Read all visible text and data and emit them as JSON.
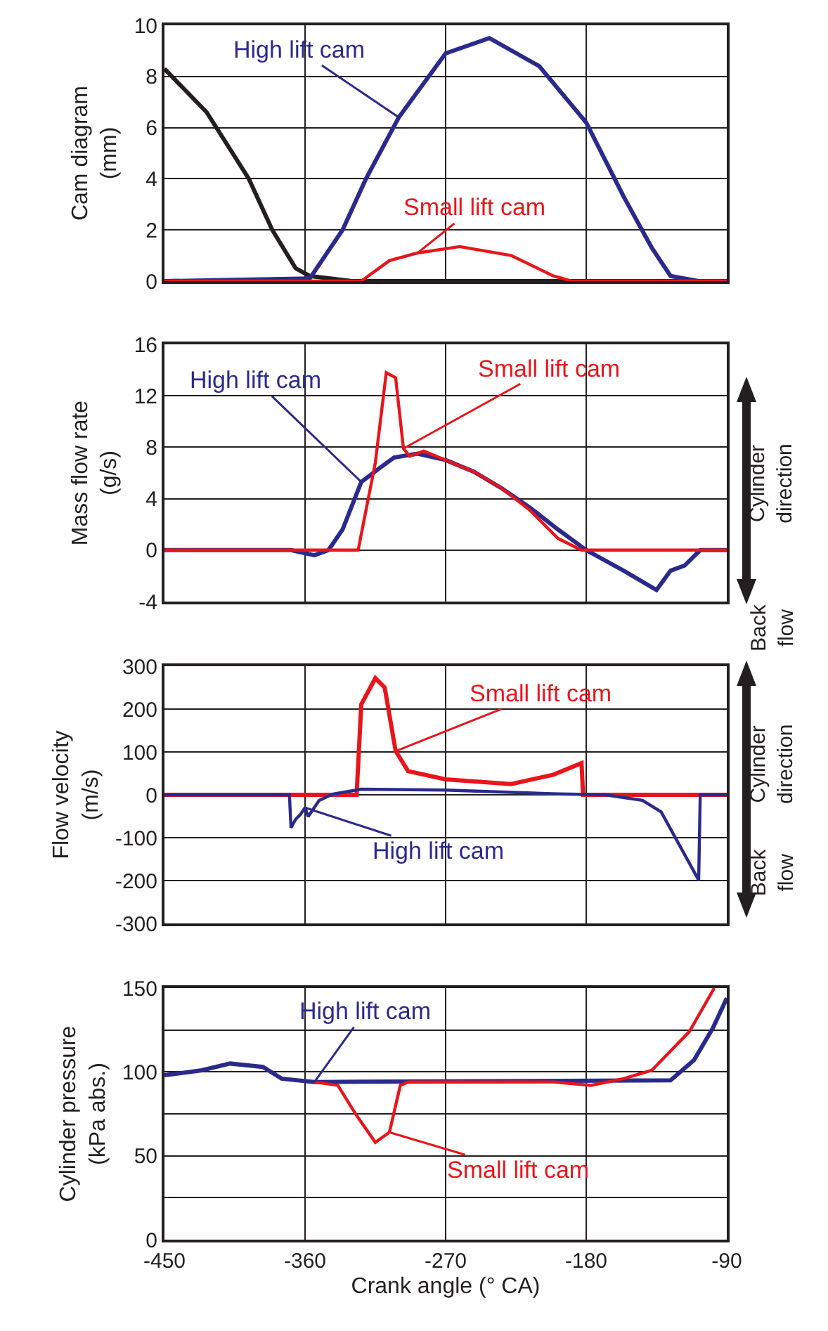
{
  "chart_data": [
    {
      "type": "line",
      "ylabel": "Cam diagram (mm)",
      "xlim": [
        -450,
        -90
      ],
      "xticks": [
        -450,
        -360,
        -270,
        -180,
        -90
      ],
      "ylim": [
        0,
        10
      ],
      "yticks": [
        0,
        2,
        4,
        6,
        8,
        10
      ],
      "grid": true,
      "series": [
        {
          "color": "#231f20",
          "x": [
            -450,
            -423,
            -396,
            -381,
            -366,
            -357,
            -330,
            -90
          ],
          "values": [
            8.3,
            6.6,
            4.0,
            2.0,
            0.5,
            0.2,
            0,
            0
          ]
        },
        {
          "name": "High lift cam",
          "color": "#2b2a8c",
          "x": [
            -450,
            -357,
            -336,
            -321,
            -300,
            -270,
            -242,
            -210,
            -180,
            -156,
            -138,
            -126,
            -108,
            -90
          ],
          "values": [
            0,
            0.1,
            2.0,
            4.0,
            6.4,
            8.9,
            9.5,
            8.4,
            6.2,
            3.3,
            1.3,
            0.2,
            0,
            0
          ]
        },
        {
          "name": "Small lift cam",
          "color": "#e8151b",
          "x": [
            -450,
            -324,
            -306,
            -288,
            -261,
            -228,
            -201,
            -189,
            -90
          ],
          "values": [
            0,
            0,
            0.8,
            1.1,
            1.35,
            1.0,
            0.2,
            0,
            0
          ]
        }
      ],
      "tick_labels": "y"
    },
    {
      "type": "line",
      "ylabel": "Mass flow rate (g/s)",
      "xlim": [
        -450,
        -90
      ],
      "xticks": [
        -450,
        -360,
        -270,
        -180,
        -90
      ],
      "ylim": [
        -4,
        16
      ],
      "yticks": [
        -4,
        0,
        4,
        8,
        12,
        16
      ],
      "grid": true,
      "tick_labels": "y",
      "series": [
        {
          "name": "High lift cam",
          "color": "#2b2a8c",
          "x": [
            -450,
            -369,
            -354,
            -345,
            -336,
            -324,
            -312,
            -303,
            -288,
            -270,
            -252,
            -234,
            -216,
            -198,
            -180,
            -156,
            -135,
            -126,
            -117,
            -107,
            -90
          ],
          "values": [
            0,
            0,
            -0.4,
            0,
            1.6,
            5.3,
            6.4,
            7.2,
            7.5,
            7.0,
            6.1,
            4.8,
            3.3,
            1.6,
            0,
            -1.6,
            -3.1,
            -1.6,
            -1.2,
            0,
            0
          ]
        },
        {
          "name": "Small lift cam",
          "color": "#e8151b",
          "x": [
            -450,
            -326,
            -315,
            -308,
            -302,
            -297,
            -293,
            -284,
            -270,
            -252,
            -234,
            -216,
            -198,
            -183,
            -90
          ],
          "values": [
            0,
            0,
            6.8,
            13.8,
            13.4,
            7.9,
            7.3,
            7.7,
            7.0,
            6.1,
            4.8,
            3.1,
            0.9,
            0,
            0
          ]
        }
      ],
      "annotations": [
        "Cylinder direction",
        "Back flow"
      ]
    },
    {
      "type": "line",
      "ylabel": "Flow velocity (m/s)",
      "xlim": [
        -450,
        -90
      ],
      "xticks": [
        -450,
        -360,
        -270,
        -180,
        -90
      ],
      "ylim": [
        -300,
        300
      ],
      "yticks": [
        -300,
        -200,
        -100,
        0,
        100,
        200,
        300
      ],
      "grid": true,
      "tick_labels": "y",
      "series": [
        {
          "name": "Small lift cam",
          "color": "#e8151b",
          "x": [
            -450,
            -327,
            -324,
            -315,
            -309,
            -302,
            -294,
            -270,
            -228,
            -201,
            -183,
            -182,
            -90
          ],
          "values": [
            0,
            0,
            211,
            272,
            250,
            102,
            55,
            36,
            25,
            47,
            74,
            0,
            0
          ]
        },
        {
          "name": "High lift cam",
          "color": "#2b2a8c",
          "x": [
            -450,
            -370,
            -369,
            -366,
            -363,
            -360,
            -358,
            -351,
            -342,
            -324,
            -270,
            -198,
            -168,
            -144,
            -132,
            -108,
            -107,
            -90
          ],
          "values": [
            0,
            0,
            -77,
            -57,
            -46,
            -30,
            -51,
            -13,
            2,
            13,
            11,
            2,
            0,
            -13,
            -40,
            -199,
            0,
            0
          ]
        }
      ],
      "annotations": [
        "Cylinder direction",
        "Back flow"
      ]
    },
    {
      "type": "line",
      "ylabel": "Cylinder pressure (kPa abs.)",
      "xlabel": "Crank angle (° CA)",
      "xlim": [
        -450,
        -90
      ],
      "xticks": [
        -450,
        -360,
        -270,
        -180,
        -90
      ],
      "ylim": [
        0,
        150
      ],
      "yticks": [
        0,
        {
          "value": 25,
          "label": null
        },
        50,
        {
          "value": 75,
          "label": null
        },
        100,
        {
          "value": 125,
          "label": null
        },
        150
      ],
      "series": [
        {
          "name": "High lift cam",
          "color": "#2b2a8c",
          "x": [
            -450,
            -426,
            -408,
            -387,
            -375,
            -354,
            -126,
            -111,
            -99,
            -90
          ],
          "values": [
            98,
            101,
            105,
            103,
            96,
            94,
            95,
            107,
            126,
            144
          ]
        },
        {
          "name": "Small lift cam",
          "color": "#e8151b",
          "x": [
            -354,
            -339,
            -327,
            -315,
            -306,
            -299,
            -294,
            -201,
            -177,
            -156,
            -138,
            -114,
            -98
          ],
          "values": [
            94,
            92,
            74,
            58,
            64,
            92,
            94,
            94,
            92,
            96,
            101,
            124,
            150
          ]
        }
      ],
      "grid": true
    }
  ]
}
